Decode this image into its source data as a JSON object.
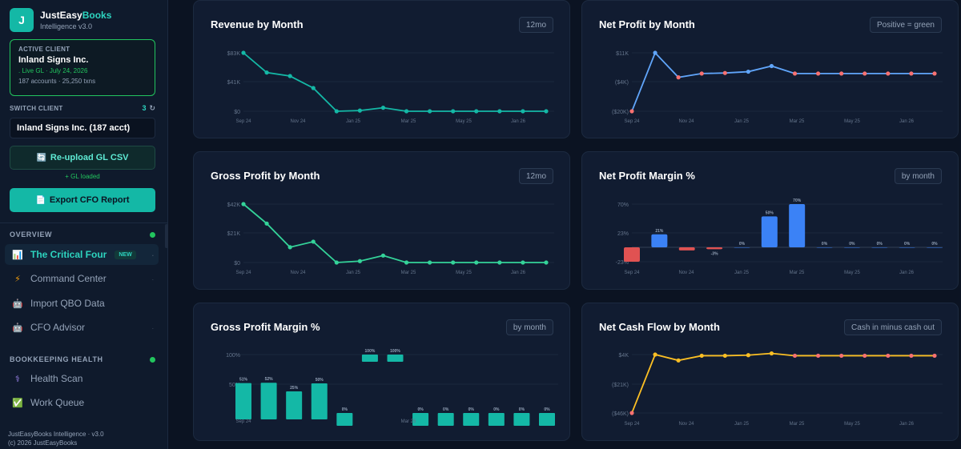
{
  "sidebar": {
    "brand": {
      "logo": "J",
      "name_a": "JustEasy",
      "name_b": "Books",
      "sub": "Intelligence v3.0"
    },
    "active_client": {
      "label": "ACTIVE CLIENT",
      "name": "Inland Signs Inc.",
      "gl": ". Live GL · July 24, 2026",
      "meta": "187 accounts · 25,250 txns"
    },
    "switch": {
      "label": "SWITCH CLIENT",
      "count": "3",
      "refresh_icon": "↻",
      "selected": "Inland Signs Inc. (187 acct)"
    },
    "reupload_label": "Re-upload GL CSV",
    "gl_loaded": "+ GL loaded",
    "export_label": "Export CFO Report",
    "sections": {
      "overview": "OVERVIEW",
      "bookkeeping": "BOOKKEEPING HEALTH"
    },
    "nav": [
      {
        "icon": "chart-icon",
        "glyph": "📊",
        "label": "The Critical Four",
        "badge": "NEW"
      },
      {
        "icon": "lightning-icon",
        "glyph": "⚡",
        "label": "Command Center"
      },
      {
        "icon": "robot-icon",
        "glyph": "🤖",
        "label": "Import QBO Data"
      },
      {
        "icon": "advisor-icon",
        "glyph": "🤖",
        "label": "CFO Advisor"
      },
      {
        "icon": "stethoscope-icon",
        "glyph": "⚕",
        "label": "Health Scan"
      },
      {
        "icon": "checkbox-icon",
        "glyph": "✅",
        "label": "Work Queue"
      }
    ],
    "footer": {
      "line1": "JustEasyBooks Intelligence · v3.0",
      "line2": "(c) 2026 JustEasyBooks"
    }
  },
  "cards": {
    "revenue": {
      "title": "Revenue by Month",
      "badge": "12mo"
    },
    "net_profit": {
      "title": "Net Profit by Month",
      "badge": "Positive = green"
    },
    "gross_profit": {
      "title": "Gross Profit by Month",
      "badge": "12mo"
    },
    "np_margin": {
      "title": "Net Profit Margin %",
      "badge": "by month"
    },
    "gp_margin": {
      "title": "Gross Profit Margin %",
      "badge": "by month"
    },
    "cash_flow": {
      "title": "Net Cash Flow by Month",
      "badge": "Cash in minus cash out"
    }
  },
  "colors": {
    "teal": "#14b8a6",
    "green": "#22c55e",
    "blue": "#60a5fa",
    "red": "#f87171",
    "amber": "#fbbf24",
    "bar_blue": "#3b82f6"
  },
  "chart_data": [
    {
      "id": "revenue",
      "type": "line",
      "title": "Revenue by Month",
      "x_ticks": [
        "Sep 24",
        "Nov 24",
        "Jan 25",
        "Mar 25",
        "May 25",
        "Jan 26"
      ],
      "y_ticks": [
        "$83K",
        "$41K",
        "$0"
      ],
      "ylim": [
        0,
        83
      ],
      "values": [
        83,
        55,
        50,
        33,
        0,
        1,
        5,
        0,
        0,
        0,
        0,
        0,
        0,
        0
      ]
    },
    {
      "id": "net_profit",
      "type": "line",
      "title": "Net Profit by Month",
      "x_ticks": [
        "Sep 24",
        "Nov 24",
        "Jan 25",
        "Mar 25",
        "May 25",
        "Jan 26"
      ],
      "y_ticks": [
        "$11K",
        "($4K)",
        "($20K)"
      ],
      "ylim": [
        -20,
        11
      ],
      "values": [
        -20,
        11,
        -2,
        0,
        0.3,
        1,
        4,
        0,
        0,
        0,
        0,
        0,
        0,
        0
      ]
    },
    {
      "id": "gross_profit",
      "type": "line",
      "title": "Gross Profit by Month",
      "x_ticks": [
        "Sep 24",
        "Nov 24",
        "Jan 25",
        "Mar 25",
        "May 25",
        "Jan 26"
      ],
      "y_ticks": [
        "$42K",
        "$21K",
        "$0"
      ],
      "ylim": [
        0,
        42
      ],
      "values": [
        42,
        28,
        11,
        15,
        0,
        1,
        5,
        0,
        0,
        0,
        0,
        0,
        0,
        0
      ]
    },
    {
      "id": "np_margin",
      "type": "bar",
      "title": "Net Profit Margin %",
      "x_ticks": [
        "Sep 24",
        "Nov 24",
        "Jan 25",
        "Mar 25",
        "May 25",
        "Jan 26"
      ],
      "y_ticks": [
        "70%",
        "23%",
        "-23%"
      ],
      "ylim": [
        -23,
        70
      ],
      "values": [
        -23,
        21,
        -5,
        -3,
        0,
        50,
        70,
        0,
        0,
        0,
        0,
        0
      ],
      "labels": [
        "",
        "21%",
        "",
        "-3%",
        "0%",
        "50%",
        "70%",
        "0%",
        "0%",
        "0%",
        "0%",
        "0%"
      ]
    },
    {
      "id": "gp_margin",
      "type": "bar",
      "title": "Gross Profit Margin %",
      "x_ticks": [
        "Sep 24",
        "Mar 25"
      ],
      "y_ticks": [
        "100%",
        "50%"
      ],
      "ylim": [
        0,
        100
      ],
      "values": [
        51,
        52,
        25,
        50,
        0,
        100,
        100,
        0,
        0,
        0,
        0,
        0,
        0
      ],
      "labels": [
        "51%",
        "52%",
        "25%",
        "50%",
        "0%",
        "100%",
        "100%",
        "0%",
        "0%",
        "0%",
        "0%",
        "0%",
        "0%"
      ]
    },
    {
      "id": "cash_flow",
      "type": "line",
      "title": "Net Cash Flow by Month",
      "x_ticks": [
        "Sep 24",
        "Nov 24",
        "Jan 25",
        "Mar 25",
        "May 25",
        "Jan 26"
      ],
      "y_ticks": [
        "$4K",
        "($21K)",
        "($46K)"
      ],
      "ylim": [
        -46,
        4
      ],
      "values": [
        -46,
        4,
        -1,
        3,
        3,
        3.5,
        5,
        3,
        3,
        3,
        3,
        3,
        3,
        3
      ]
    }
  ]
}
